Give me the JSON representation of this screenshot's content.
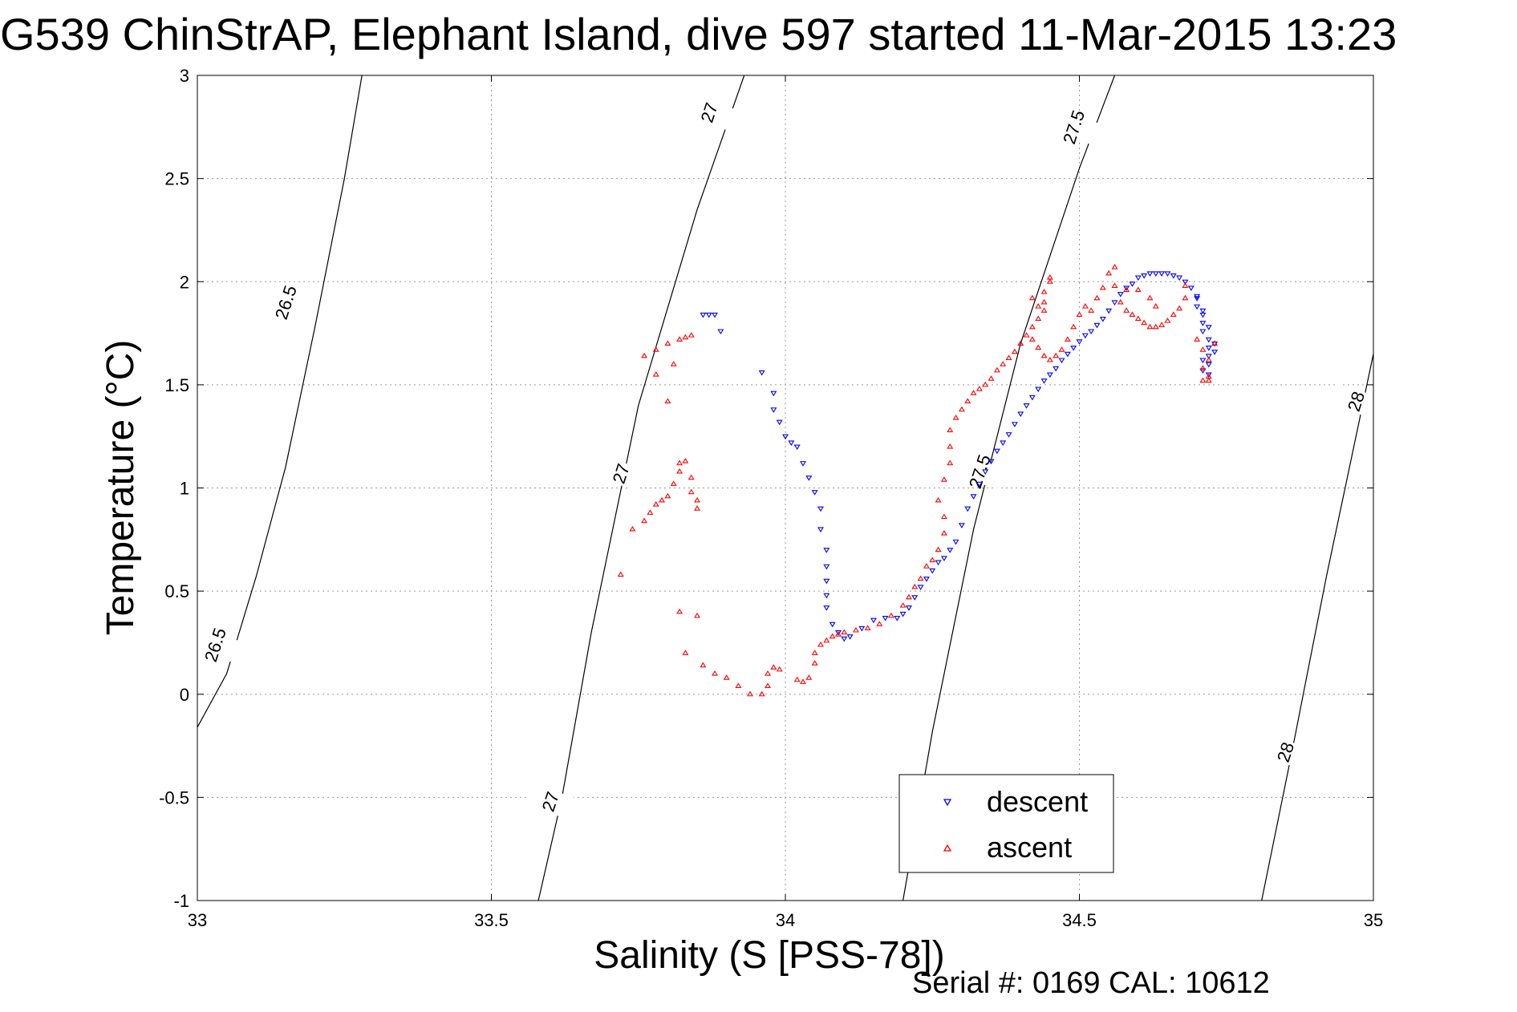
{
  "chart_data": {
    "type": "scatter",
    "title": "G539 ChinStrAP, Elephant Island, dive 597 started 11-Mar-2015 13:23",
    "xlabel": "Salinity (S [PSS-78])",
    "ylabel": "Temperature (°C)",
    "xlim": [
      33,
      35
    ],
    "ylim": [
      -1,
      3
    ],
    "xticks": [
      "33",
      "33.5",
      "34",
      "34.5",
      "35"
    ],
    "xtick_values": [
      33,
      33.5,
      34,
      34.5,
      35
    ],
    "yticks": [
      "-1",
      "-0.5",
      "0",
      "0.5",
      "1",
      "1.5",
      "2",
      "2.5",
      "3"
    ],
    "ytick_values": [
      -1,
      -0.5,
      0,
      0.5,
      1,
      1.5,
      2,
      2.5,
      3
    ],
    "grid": true,
    "legend_position": "bottom-right",
    "footer": "Serial #: 0169 CAL: 10612",
    "density_contours": [
      {
        "label": "26.5",
        "points": [
          [
            33.0,
            -0.16
          ],
          [
            33.05,
            0.1
          ],
          [
            33.1,
            0.57
          ],
          [
            33.15,
            1.1
          ],
          [
            33.2,
            1.78
          ],
          [
            33.25,
            2.5
          ],
          [
            33.28,
            3.0
          ]
        ]
      },
      {
        "label": "27",
        "points": [
          [
            33.58,
            -1.0
          ],
          [
            33.62,
            -0.5
          ],
          [
            33.67,
            0.3
          ],
          [
            33.75,
            1.4
          ],
          [
            33.85,
            2.35
          ],
          [
            33.93,
            3.0
          ]
        ]
      },
      {
        "label": "27.5",
        "points": [
          [
            34.2,
            -1.0
          ],
          [
            34.25,
            -0.18
          ],
          [
            34.32,
            0.8
          ],
          [
            34.4,
            1.7
          ],
          [
            34.5,
            2.55
          ],
          [
            34.56,
            3.0
          ]
        ]
      },
      {
        "label": "28",
        "points": [
          [
            34.81,
            -1.0
          ],
          [
            34.86,
            -0.3
          ],
          [
            34.92,
            0.57
          ],
          [
            35.0,
            1.65
          ]
        ]
      }
    ],
    "contour_labels": [
      {
        "text": "26.5",
        "x": 33.15,
        "y": 1.9
      },
      {
        "text": "26.5",
        "x": 33.03,
        "y": 0.24
      },
      {
        "text": "27",
        "x": 33.87,
        "y": 2.82
      },
      {
        "text": "27",
        "x": 33.72,
        "y": 1.07
      },
      {
        "text": "27",
        "x": 33.6,
        "y": -0.52
      },
      {
        "text": "27.5",
        "x": 34.49,
        "y": 2.75
      },
      {
        "text": "27.5",
        "x": 34.33,
        "y": 1.08
      },
      {
        "text": "28",
        "x": 34.97,
        "y": 1.42
      },
      {
        "text": "28",
        "x": 34.85,
        "y": -0.28
      }
    ],
    "series": [
      {
        "name": "descent",
        "color": "#0000ff",
        "marker": "triangle-down",
        "points": [
          [
            33.86,
            1.84
          ],
          [
            33.87,
            1.84
          ],
          [
            33.88,
            1.84
          ],
          [
            33.89,
            1.76
          ],
          [
            33.96,
            1.56
          ],
          [
            33.98,
            1.46
          ],
          [
            33.98,
            1.38
          ],
          [
            33.99,
            1.32
          ],
          [
            34.0,
            1.25
          ],
          [
            34.01,
            1.22
          ],
          [
            34.02,
            1.2
          ],
          [
            34.03,
            1.12
          ],
          [
            34.04,
            1.05
          ],
          [
            34.05,
            0.98
          ],
          [
            34.06,
            0.9
          ],
          [
            34.06,
            0.8
          ],
          [
            34.07,
            0.7
          ],
          [
            34.07,
            0.62
          ],
          [
            34.07,
            0.55
          ],
          [
            34.07,
            0.48
          ],
          [
            34.07,
            0.42
          ],
          [
            34.08,
            0.34
          ],
          [
            34.09,
            0.3
          ],
          [
            34.1,
            0.27
          ],
          [
            34.11,
            0.28
          ],
          [
            34.13,
            0.32
          ],
          [
            34.15,
            0.36
          ],
          [
            34.17,
            0.37
          ],
          [
            34.19,
            0.37
          ],
          [
            34.2,
            0.39
          ],
          [
            34.21,
            0.42
          ],
          [
            34.22,
            0.47
          ],
          [
            34.23,
            0.52
          ],
          [
            34.24,
            0.56
          ],
          [
            34.25,
            0.6
          ],
          [
            34.26,
            0.64
          ],
          [
            34.27,
            0.66
          ],
          [
            34.28,
            0.7
          ],
          [
            34.29,
            0.74
          ],
          [
            34.3,
            0.82
          ],
          [
            34.31,
            0.9
          ],
          [
            34.32,
            0.96
          ],
          [
            34.33,
            1.02
          ],
          [
            34.34,
            1.08
          ],
          [
            34.35,
            1.13
          ],
          [
            34.36,
            1.18
          ],
          [
            34.37,
            1.22
          ],
          [
            34.38,
            1.26
          ],
          [
            34.39,
            1.31
          ],
          [
            34.4,
            1.36
          ],
          [
            34.41,
            1.4
          ],
          [
            34.42,
            1.44
          ],
          [
            34.43,
            1.48
          ],
          [
            34.44,
            1.52
          ],
          [
            34.45,
            1.55
          ],
          [
            34.46,
            1.58
          ],
          [
            34.47,
            1.62
          ],
          [
            34.48,
            1.65
          ],
          [
            34.49,
            1.68
          ],
          [
            34.5,
            1.71
          ],
          [
            34.51,
            1.74
          ],
          [
            34.52,
            1.76
          ],
          [
            34.53,
            1.79
          ],
          [
            34.54,
            1.82
          ],
          [
            34.55,
            1.86
          ],
          [
            34.56,
            1.9
          ],
          [
            34.57,
            1.94
          ],
          [
            34.58,
            1.97
          ],
          [
            34.59,
            1.99
          ],
          [
            34.6,
            2.02
          ],
          [
            34.61,
            2.03
          ],
          [
            34.62,
            2.04
          ],
          [
            34.63,
            2.04
          ],
          [
            34.64,
            2.04
          ],
          [
            34.65,
            2.04
          ],
          [
            34.66,
            2.03
          ],
          [
            34.67,
            2.02
          ],
          [
            34.68,
            2.0
          ],
          [
            34.69,
            1.97
          ],
          [
            34.7,
            1.93
          ],
          [
            34.7,
            1.88
          ],
          [
            34.71,
            1.84
          ],
          [
            34.71,
            1.8
          ],
          [
            34.71,
            1.76
          ],
          [
            34.72,
            1.72
          ],
          [
            34.72,
            1.68
          ],
          [
            34.72,
            1.64
          ],
          [
            34.72,
            1.6
          ],
          [
            34.71,
            1.57
          ],
          [
            34.71,
            1.62
          ],
          [
            34.73,
            1.66
          ],
          [
            34.73,
            1.7
          ],
          [
            34.72,
            1.78
          ],
          [
            34.71,
            1.86
          ],
          [
            34.7,
            1.92
          ],
          [
            34.72,
            1.55
          ]
        ]
      },
      {
        "name": "ascent",
        "color": "#ff0000",
        "marker": "triangle-up",
        "points": [
          [
            33.72,
            0.58
          ],
          [
            33.74,
            0.8
          ],
          [
            33.76,
            0.84
          ],
          [
            33.77,
            0.88
          ],
          [
            33.78,
            0.92
          ],
          [
            33.79,
            0.94
          ],
          [
            33.8,
            0.96
          ],
          [
            33.81,
            1.02
          ],
          [
            33.82,
            1.12
          ],
          [
            33.82,
            1.08
          ],
          [
            33.83,
            1.13
          ],
          [
            33.84,
            1.05
          ],
          [
            33.84,
            0.98
          ],
          [
            33.85,
            0.94
          ],
          [
            33.85,
            0.9
          ],
          [
            33.78,
            1.55
          ],
          [
            33.8,
            1.42
          ],
          [
            33.81,
            1.6
          ],
          [
            33.76,
            1.64
          ],
          [
            33.78,
            1.67
          ],
          [
            33.8,
            1.7
          ],
          [
            33.82,
            1.72
          ],
          [
            33.83,
            1.73
          ],
          [
            33.84,
            1.74
          ],
          [
            33.82,
            0.4
          ],
          [
            33.85,
            0.38
          ],
          [
            33.83,
            0.2
          ],
          [
            33.86,
            0.14
          ],
          [
            33.88,
            0.1
          ],
          [
            33.9,
            0.08
          ],
          [
            33.92,
            0.04
          ],
          [
            33.94,
            0.0
          ],
          [
            33.96,
            0.0
          ],
          [
            33.97,
            0.04
          ],
          [
            33.97,
            0.1
          ],
          [
            33.98,
            0.13
          ],
          [
            33.99,
            0.12
          ],
          [
            34.02,
            0.07
          ],
          [
            34.03,
            0.06
          ],
          [
            34.04,
            0.08
          ],
          [
            34.05,
            0.15
          ],
          [
            34.05,
            0.2
          ],
          [
            34.06,
            0.24
          ],
          [
            34.07,
            0.26
          ],
          [
            34.08,
            0.28
          ],
          [
            34.09,
            0.29
          ],
          [
            34.1,
            0.3
          ],
          [
            34.12,
            0.31
          ],
          [
            34.14,
            0.32
          ],
          [
            34.16,
            0.34
          ],
          [
            34.18,
            0.38
          ],
          [
            34.2,
            0.43
          ],
          [
            34.21,
            0.47
          ],
          [
            34.22,
            0.52
          ],
          [
            34.23,
            0.56
          ],
          [
            34.24,
            0.62
          ],
          [
            34.25,
            0.65
          ],
          [
            34.26,
            0.7
          ],
          [
            34.27,
            0.78
          ],
          [
            34.27,
            0.86
          ],
          [
            34.26,
            0.94
          ],
          [
            34.27,
            1.04
          ],
          [
            34.28,
            1.12
          ],
          [
            34.28,
            1.2
          ],
          [
            34.28,
            1.28
          ],
          [
            34.29,
            1.34
          ],
          [
            34.3,
            1.38
          ],
          [
            34.31,
            1.42
          ],
          [
            34.32,
            1.46
          ],
          [
            34.33,
            1.48
          ],
          [
            34.34,
            1.5
          ],
          [
            34.35,
            1.53
          ],
          [
            34.36,
            1.57
          ],
          [
            34.37,
            1.6
          ],
          [
            34.38,
            1.63
          ],
          [
            34.39,
            1.66
          ],
          [
            34.4,
            1.7
          ],
          [
            34.41,
            1.74
          ],
          [
            34.42,
            1.78
          ],
          [
            34.43,
            1.82
          ],
          [
            34.44,
            1.86
          ],
          [
            34.44,
            1.9
          ],
          [
            34.44,
            1.95
          ],
          [
            34.45,
            2.0
          ],
          [
            34.45,
            2.02
          ],
          [
            34.42,
            1.92
          ],
          [
            34.43,
            1.88
          ],
          [
            34.42,
            1.72
          ],
          [
            34.43,
            1.68
          ],
          [
            34.44,
            1.64
          ],
          [
            34.45,
            1.62
          ],
          [
            34.46,
            1.64
          ],
          [
            34.47,
            1.67
          ],
          [
            34.48,
            1.72
          ],
          [
            34.49,
            1.78
          ],
          [
            34.5,
            1.84
          ],
          [
            34.51,
            1.88
          ],
          [
            34.52,
            1.86
          ],
          [
            34.53,
            1.92
          ],
          [
            34.54,
            1.97
          ],
          [
            34.55,
            2.04
          ],
          [
            34.56,
            2.07
          ],
          [
            34.56,
            1.98
          ],
          [
            34.57,
            1.9
          ],
          [
            34.58,
            1.86
          ],
          [
            34.59,
            1.84
          ],
          [
            34.6,
            1.82
          ],
          [
            34.61,
            1.8
          ],
          [
            34.62,
            1.78
          ],
          [
            34.63,
            1.78
          ],
          [
            34.64,
            1.79
          ],
          [
            34.65,
            1.81
          ],
          [
            34.66,
            1.84
          ],
          [
            34.67,
            1.87
          ],
          [
            34.68,
            1.92
          ],
          [
            34.68,
            1.98
          ],
          [
            34.7,
            1.72
          ],
          [
            34.71,
            1.67
          ],
          [
            34.72,
            1.62
          ],
          [
            34.71,
            1.58
          ],
          [
            34.72,
            1.54
          ],
          [
            34.71,
            1.52
          ],
          [
            34.72,
            1.52
          ],
          [
            34.73,
            1.7
          ],
          [
            34.6,
            1.96
          ],
          [
            34.62,
            1.92
          ],
          [
            34.63,
            1.88
          ],
          [
            34.58,
            1.96
          ]
        ]
      }
    ]
  }
}
